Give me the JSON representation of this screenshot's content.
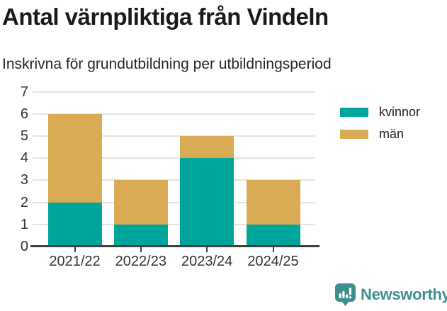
{
  "chart_data": {
    "type": "bar",
    "stacked": true,
    "title": "Antal värnpliktiga från Vindeln",
    "subtitle": "Inskrivna för grundutbildning per utbildningsperiod",
    "categories": [
      "2021/22",
      "2022/23",
      "2023/24",
      "2024/25"
    ],
    "series": [
      {
        "name": "kvinnor",
        "color": "#00a69c",
        "values": [
          2,
          1,
          4,
          1
        ]
      },
      {
        "name": "män",
        "color": "#d9ab55",
        "values": [
          4,
          2,
          1,
          2
        ]
      }
    ],
    "totals": [
      6,
      3,
      5,
      3
    ],
    "ylim": [
      0,
      7
    ],
    "yticks": [
      0,
      1,
      2,
      3,
      4,
      5,
      6,
      7
    ],
    "grid": true,
    "legend_position": "right",
    "colors": {
      "grid": "#e4e4e4",
      "axis": "#3f3f3f",
      "axis_text": "#333333"
    }
  },
  "footer": {
    "brand": "Newsworthy",
    "brand_color": "#3f8f90"
  }
}
